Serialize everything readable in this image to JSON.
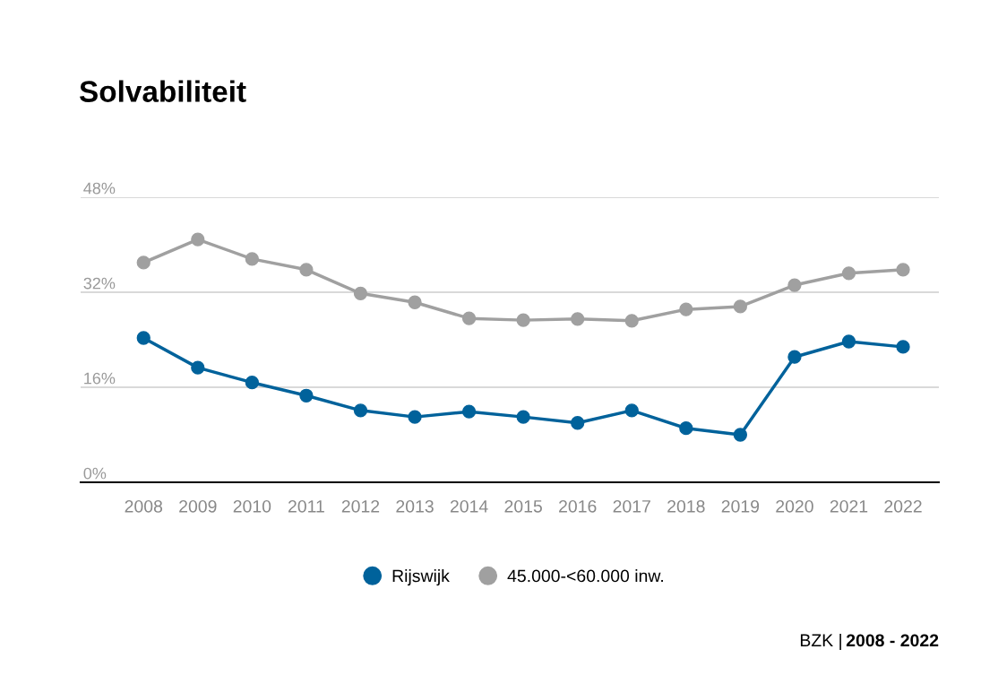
{
  "chart_data": {
    "type": "line",
    "title": "Solvabiliteit",
    "categories": [
      "2008",
      "2009",
      "2010",
      "2011",
      "2012",
      "2013",
      "2014",
      "2015",
      "2016",
      "2017",
      "2018",
      "2019",
      "2020",
      "2021",
      "2022"
    ],
    "series": [
      {
        "name": "Rijswijk",
        "color": "#00629b",
        "values": [
          24.3,
          19.3,
          16.8,
          14.6,
          12.1,
          11.0,
          11.9,
          11.0,
          10.0,
          12.1,
          9.1,
          8.0,
          21.1,
          23.7,
          22.8
        ]
      },
      {
        "name": "45.000-<60.000 inw.",
        "color": "#a0a0a0",
        "values": [
          37.0,
          40.9,
          37.6,
          35.8,
          31.8,
          30.3,
          27.6,
          27.3,
          27.5,
          27.2,
          29.1,
          29.6,
          33.2,
          35.2,
          35.8
        ]
      }
    ],
    "ylim": [
      0,
      48
    ],
    "yticks": [
      {
        "value": 0,
        "label": "0%"
      },
      {
        "value": 16,
        "label": "16%"
      },
      {
        "value": 32,
        "label": "32%"
      },
      {
        "value": 48,
        "label": "48%"
      }
    ],
    "grid": "y",
    "legend": "bottom",
    "marker": "circle",
    "line_style": "solid",
    "annotations": [
      "BZK |",
      "2008 - 2022"
    ]
  }
}
